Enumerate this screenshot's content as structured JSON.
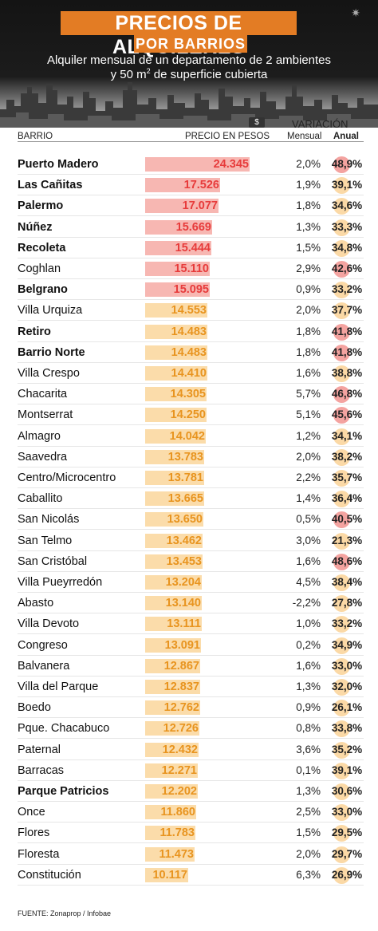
{
  "header": {
    "title_line1": "PRECIOS DE ALQUILERES",
    "title_line2": "POR BARRIOS",
    "subtitle_line1": "Alquiler mensual de un departamento de 2 ambientes",
    "subtitle_line2_prefix": "y 50 m",
    "subtitle_line2_sup": "2",
    "subtitle_line2_suffix": " de superficie cubierta"
  },
  "columns": {
    "barrio": "BARRIO",
    "precio": "PRECIO EN PESOS",
    "variacion": "VARIACIÓN",
    "mensual": "Mensual",
    "anual": "Anual"
  },
  "icons": {
    "money": "money-bill-icon",
    "settings": "gear-icon",
    "skyline": "city-skyline-icon"
  },
  "colors": {
    "accent": "#e37c24",
    "high_bar": "#f7b7b2",
    "low_bar": "#fbdcaa",
    "high_price": "#e73b3b",
    "low_price": "#e8941f"
  },
  "chart_data": {
    "type": "table",
    "title": "PRECIOS DE ALQUILERES POR BARRIOS",
    "subtitle": "Alquiler mensual de un departamento de 2 ambientes y 50 m2 de superficie cubierta",
    "columns": [
      "BARRIO",
      "PRECIO EN PESOS",
      "Mensual",
      "Anual"
    ],
    "price_max": 24345,
    "rows": [
      {
        "barrio": "Puerto Madero",
        "precio": 24345,
        "precio_label": "24.345",
        "mensual": "2,0%",
        "anual": "48,9%",
        "anual_value": 48.9,
        "bold": true
      },
      {
        "barrio": "Las Cañitas",
        "precio": 17526,
        "precio_label": "17.526",
        "mensual": "1,9%",
        "anual": "39,1%",
        "anual_value": 39.1,
        "bold": true
      },
      {
        "barrio": "Palermo",
        "precio": 17077,
        "precio_label": "17.077",
        "mensual": "1,8%",
        "anual": "34,6%",
        "anual_value": 34.6,
        "bold": true
      },
      {
        "barrio": "Núñez",
        "precio": 15669,
        "precio_label": "15.669",
        "mensual": "1,3%",
        "anual": "33,3%",
        "anual_value": 33.3,
        "bold": true
      },
      {
        "barrio": "Recoleta",
        "precio": 15444,
        "precio_label": "15.444",
        "mensual": "1,5%",
        "anual": "34,8%",
        "anual_value": 34.8,
        "bold": true
      },
      {
        "barrio": "Coghlan",
        "precio": 15110,
        "precio_label": "15.110",
        "mensual": "2,9%",
        "anual": "42,6%",
        "anual_value": 42.6,
        "bold": false
      },
      {
        "barrio": "Belgrano",
        "precio": 15095,
        "precio_label": "15.095",
        "mensual": "0,9%",
        "anual": "33,2%",
        "anual_value": 33.2,
        "bold": true
      },
      {
        "barrio": "Villa Urquiza",
        "precio": 14553,
        "precio_label": "14.553",
        "mensual": "2,0%",
        "anual": "37,7%",
        "anual_value": 37.7,
        "bold": false
      },
      {
        "barrio": "Retiro",
        "precio": 14483,
        "precio_label": "14.483",
        "mensual": "1,8%",
        "anual": "41,8%",
        "anual_value": 41.8,
        "bold": true
      },
      {
        "barrio": "Barrio Norte",
        "precio": 14483,
        "precio_label": "14.483",
        "mensual": "1,8%",
        "anual": "41,8%",
        "anual_value": 41.8,
        "bold": true
      },
      {
        "barrio": "Villa Crespo",
        "precio": 14410,
        "precio_label": "14.410",
        "mensual": "1,6%",
        "anual": "38,8%",
        "anual_value": 38.8,
        "bold": false
      },
      {
        "barrio": "Chacarita",
        "precio": 14305,
        "precio_label": "14.305",
        "mensual": "5,7%",
        "anual": "46,8%",
        "anual_value": 46.8,
        "bold": false
      },
      {
        "barrio": "Montserrat",
        "precio": 14250,
        "precio_label": "14.250",
        "mensual": "5,1%",
        "anual": "45,6%",
        "anual_value": 45.6,
        "bold": false
      },
      {
        "barrio": "Almagro",
        "precio": 14042,
        "precio_label": "14.042",
        "mensual": "1,2%",
        "anual": "34,1%",
        "anual_value": 34.1,
        "bold": false
      },
      {
        "barrio": "Saavedra",
        "precio": 13783,
        "precio_label": "13.783",
        "mensual": "2,0%",
        "anual": "38,2%",
        "anual_value": 38.2,
        "bold": false
      },
      {
        "barrio": "Centro/Microcentro",
        "precio": 13781,
        "precio_label": "13.781",
        "mensual": "2,2%",
        "anual": "35,7%",
        "anual_value": 35.7,
        "bold": false
      },
      {
        "barrio": "Caballito",
        "precio": 13665,
        "precio_label": "13.665",
        "mensual": "1,4%",
        "anual": "36,4%",
        "anual_value": 36.4,
        "bold": false
      },
      {
        "barrio": "San Nicolás",
        "precio": 13650,
        "precio_label": "13.650",
        "mensual": "0,5%",
        "anual": "40,5%",
        "anual_value": 40.5,
        "bold": false
      },
      {
        "barrio": "San Telmo",
        "precio": 13462,
        "precio_label": "13.462",
        "mensual": "3,0%",
        "anual": "21,3%",
        "anual_value": 21.3,
        "bold": false
      },
      {
        "barrio": "San Cristóbal",
        "precio": 13453,
        "precio_label": "13.453",
        "mensual": "1,6%",
        "anual": "48,6%",
        "anual_value": 48.6,
        "bold": false
      },
      {
        "barrio": "Villa Pueyrredón",
        "precio": 13204,
        "precio_label": "13.204",
        "mensual": "4,5%",
        "anual": "38,4%",
        "anual_value": 38.4,
        "bold": false
      },
      {
        "barrio": "Abasto",
        "precio": 13140,
        "precio_label": "13.140",
        "mensual": "-2,2%",
        "anual": "27,8%",
        "anual_value": 27.8,
        "bold": false
      },
      {
        "barrio": "Villa Devoto",
        "precio": 13111,
        "precio_label": "13.111",
        "mensual": "1,0%",
        "anual": "33,2%",
        "anual_value": 33.2,
        "bold": false
      },
      {
        "barrio": "Congreso",
        "precio": 13091,
        "precio_label": "13.091",
        "mensual": "0,2%",
        "anual": "34,9%",
        "anual_value": 34.9,
        "bold": false
      },
      {
        "barrio": "Balvanera",
        "precio": 12867,
        "precio_label": "12.867",
        "mensual": "1,6%",
        "anual": "33,0%",
        "anual_value": 33.0,
        "bold": false
      },
      {
        "barrio": "Villa del Parque",
        "precio": 12837,
        "precio_label": "12.837",
        "mensual": "1,3%",
        "anual": "32,0%",
        "anual_value": 32.0,
        "bold": false
      },
      {
        "barrio": "Boedo",
        "precio": 12762,
        "precio_label": "12.762",
        "mensual": "0,9%",
        "anual": "26,1%",
        "anual_value": 26.1,
        "bold": false
      },
      {
        "barrio": "Pque. Chacabuco",
        "precio": 12726,
        "precio_label": "12.726",
        "mensual": "0,8%",
        "anual": "33,8%",
        "anual_value": 33.8,
        "bold": false
      },
      {
        "barrio": "Paternal",
        "precio": 12432,
        "precio_label": "12.432",
        "mensual": "3,6%",
        "anual": "35,2%",
        "anual_value": 35.2,
        "bold": false
      },
      {
        "barrio": "Barracas",
        "precio": 12271,
        "precio_label": "12.271",
        "mensual": "0,1%",
        "anual": "39,1%",
        "anual_value": 39.1,
        "bold": false
      },
      {
        "barrio": "Parque Patricios",
        "precio": 12202,
        "precio_label": "12.202",
        "mensual": "1,3%",
        "anual": "30,6%",
        "anual_value": 30.6,
        "bold": true
      },
      {
        "barrio": "Once",
        "precio": 11860,
        "precio_label": "11.860",
        "mensual": "2,5%",
        "anual": "33,0%",
        "anual_value": 33.0,
        "bold": false
      },
      {
        "barrio": "Flores",
        "precio": 11783,
        "precio_label": "11.783",
        "mensual": "1,5%",
        "anual": "29,5%",
        "anual_value": 29.5,
        "bold": false
      },
      {
        "barrio": "Floresta",
        "precio": 11473,
        "precio_label": "11.473",
        "mensual": "2,0%",
        "anual": "29,7%",
        "anual_value": 29.7,
        "bold": false
      },
      {
        "barrio": "Constitución",
        "precio": 10117,
        "precio_label": "10.117",
        "mensual": "6,3%",
        "anual": "26,9%",
        "anual_value": 26.9,
        "bold": false
      }
    ]
  },
  "footer": {
    "source": "FUENTE: Zonaprop / Infobae"
  }
}
